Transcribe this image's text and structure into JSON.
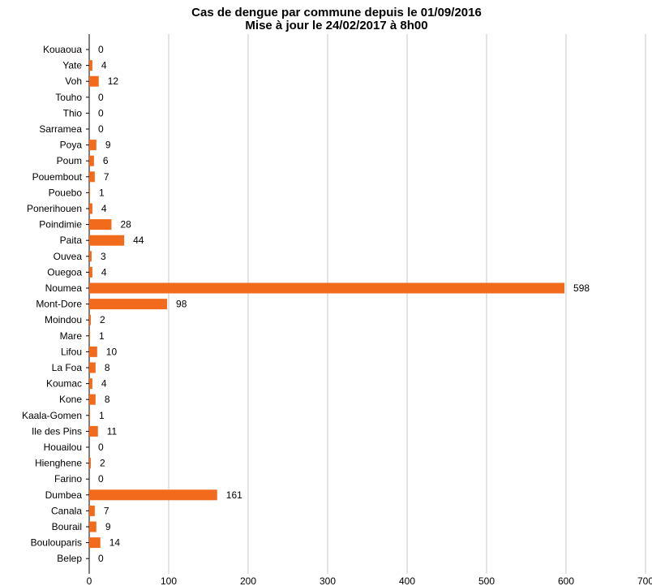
{
  "chart_data": {
    "type": "bar",
    "orientation": "horizontal",
    "title": "Cas de dengue par commune depuis le 01/09/2016",
    "subtitle": "Mise à jour le 24/02/2017 à 8h00",
    "xlabel": "",
    "ylabel": "",
    "xlim": [
      0,
      700
    ],
    "x_ticks": [
      0,
      100,
      200,
      300,
      400,
      500,
      600,
      700
    ],
    "x_tick_labels": [
      "0",
      "100",
      "200",
      "300",
      "400",
      "500",
      "600",
      "700"
    ],
    "grid": "vertical",
    "bar_color": "#f26b1d",
    "grid_color": "#c8c8c8",
    "categories": [
      "Kouaoua",
      "Yate",
      "Voh",
      "Touho",
      "Thio",
      "Sarramea",
      "Poya",
      "Poum",
      "Pouembout",
      "Pouebo",
      "Ponerihouen",
      "Poindimie",
      "Paita",
      "Ouvea",
      "Ouegoa",
      "Noumea",
      "Mont-Dore",
      "Moindou",
      "Mare",
      "Lifou",
      "La Foa",
      "Koumac",
      "Kone",
      "Kaala-Gomen",
      "Ile des Pins",
      "Houailou",
      "Hienghene",
      "Farino",
      "Dumbea",
      "Canala",
      "Bourail",
      "Boulouparis",
      "Belep"
    ],
    "values": [
      0,
      4,
      12,
      0,
      0,
      0,
      9,
      6,
      7,
      1,
      4,
      28,
      44,
      3,
      4,
      598,
      98,
      2,
      1,
      10,
      8,
      4,
      8,
      1,
      11,
      0,
      2,
      0,
      161,
      7,
      9,
      14,
      0
    ],
    "data_labels": [
      "0",
      "4",
      "12",
      "0",
      "0",
      "0",
      "9",
      "6",
      "7",
      "1",
      "4",
      "28",
      "44",
      "3",
      "4",
      "598",
      "98",
      "2",
      "1",
      "10",
      "8",
      "4",
      "8",
      "1",
      "11",
      "0",
      "2",
      "0",
      "161",
      "7",
      "9",
      "14",
      "0"
    ]
  }
}
